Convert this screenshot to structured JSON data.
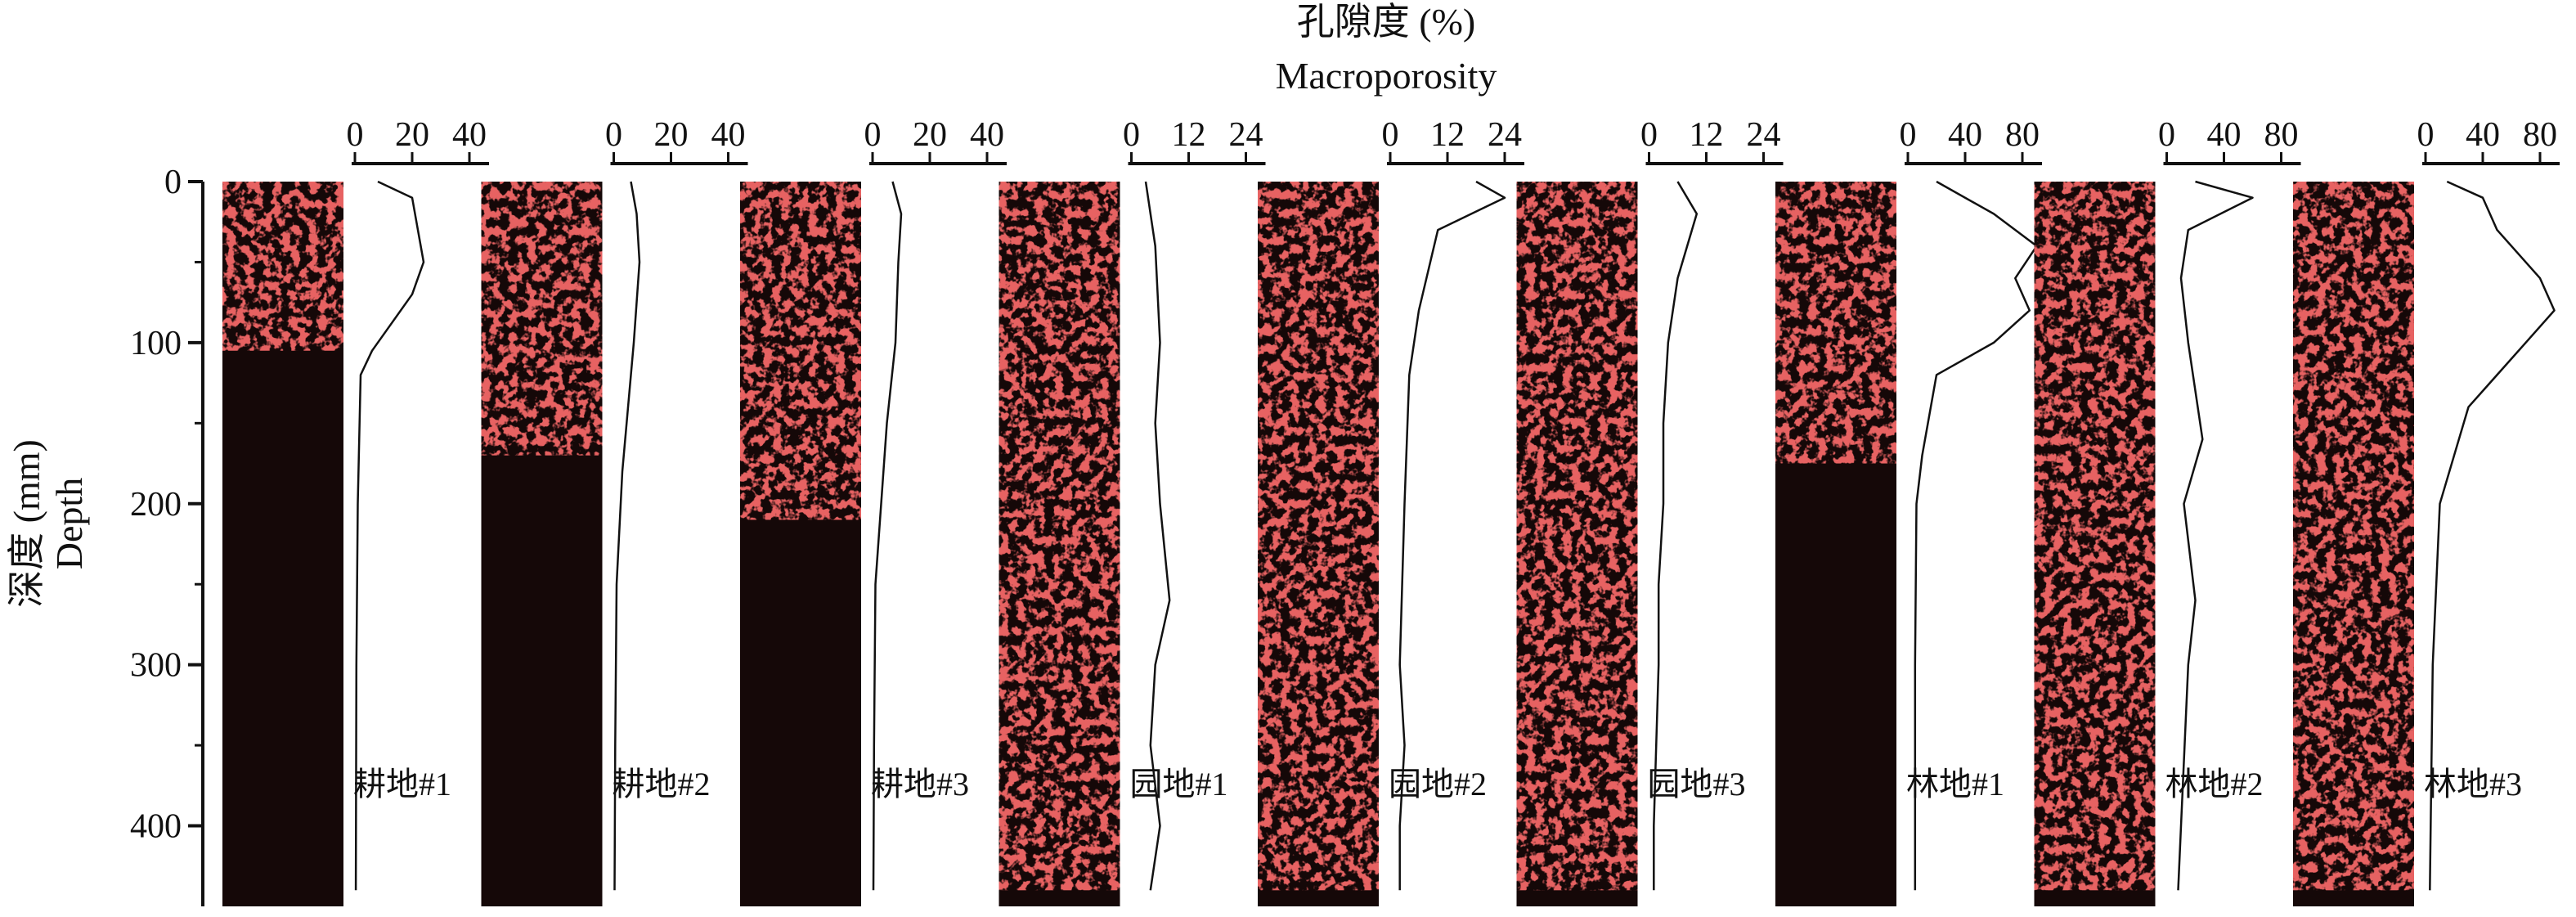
{
  "figure": {
    "top_label_zh": "孔隙度 (%)",
    "top_label_en": "Macroporosity",
    "y_label_zh": "深度 (mm)",
    "y_label_en": "Depth",
    "colors": {
      "pore": "#c41e1e",
      "pore_bright": "#e8322c",
      "background": "#150808",
      "axis": "#111111"
    }
  },
  "chart_data": {
    "type": "line",
    "y_axis": {
      "label": "深度 (mm) Depth",
      "ticks": [
        0,
        100,
        200,
        300,
        400
      ],
      "range": [
        0,
        450
      ],
      "direction": "down"
    },
    "x_axis_label": "孔隙度 (%) Macroporosity",
    "panels": [
      {
        "name": "耕地#1",
        "x_ticks": [
          0,
          20,
          40
        ],
        "x_max": 40,
        "pore_extent_mm": 105,
        "profile": [
          [
            0,
            8
          ],
          [
            10,
            20
          ],
          [
            30,
            22
          ],
          [
            50,
            24
          ],
          [
            70,
            20
          ],
          [
            90,
            12
          ],
          [
            105,
            6
          ],
          [
            120,
            2
          ],
          [
            200,
            1
          ],
          [
            300,
            0.5
          ],
          [
            440,
            0.3
          ]
        ]
      },
      {
        "name": "耕地#2",
        "x_ticks": [
          0,
          20,
          40
        ],
        "x_max": 40,
        "pore_extent_mm": 170,
        "profile": [
          [
            0,
            6
          ],
          [
            20,
            8
          ],
          [
            50,
            9
          ],
          [
            100,
            7
          ],
          [
            140,
            5
          ],
          [
            180,
            3
          ],
          [
            250,
            1
          ],
          [
            350,
            0.5
          ],
          [
            440,
            0.3
          ]
        ]
      },
      {
        "name": "耕地#3",
        "x_ticks": [
          0,
          20,
          40
        ],
        "x_max": 40,
        "pore_extent_mm": 210,
        "profile": [
          [
            0,
            7
          ],
          [
            20,
            10
          ],
          [
            50,
            9
          ],
          [
            100,
            8
          ],
          [
            150,
            5
          ],
          [
            200,
            3
          ],
          [
            250,
            1
          ],
          [
            350,
            0.5
          ],
          [
            440,
            0.3
          ]
        ]
      },
      {
        "name": "园地#1",
        "x_ticks": [
          0,
          12,
          24
        ],
        "x_max": 24,
        "pore_extent_mm": 440,
        "profile": [
          [
            0,
            3
          ],
          [
            40,
            5
          ],
          [
            100,
            6
          ],
          [
            150,
            5
          ],
          [
            200,
            6
          ],
          [
            260,
            8
          ],
          [
            300,
            5
          ],
          [
            350,
            4
          ],
          [
            400,
            6
          ],
          [
            440,
            4
          ]
        ]
      },
      {
        "name": "园地#2",
        "x_ticks": [
          0,
          12,
          24
        ],
        "x_max": 24,
        "pore_extent_mm": 440,
        "profile": [
          [
            0,
            18
          ],
          [
            10,
            24
          ],
          [
            30,
            10
          ],
          [
            80,
            6
          ],
          [
            120,
            4
          ],
          [
            200,
            3
          ],
          [
            300,
            2
          ],
          [
            350,
            3
          ],
          [
            400,
            2
          ],
          [
            440,
            2
          ]
        ]
      },
      {
        "name": "园地#3",
        "x_ticks": [
          0,
          12,
          24
        ],
        "x_max": 24,
        "pore_extent_mm": 440,
        "profile": [
          [
            0,
            6
          ],
          [
            20,
            10
          ],
          [
            60,
            6
          ],
          [
            100,
            4
          ],
          [
            150,
            3
          ],
          [
            200,
            3
          ],
          [
            250,
            2
          ],
          [
            300,
            2
          ],
          [
            400,
            1
          ],
          [
            440,
            1
          ]
        ]
      },
      {
        "name": "林地#1",
        "x_ticks": [
          0,
          40,
          80
        ],
        "x_max": 80,
        "pore_extent_mm": 175,
        "profile": [
          [
            0,
            20
          ],
          [
            20,
            60
          ],
          [
            40,
            90
          ],
          [
            60,
            75
          ],
          [
            80,
            85
          ],
          [
            100,
            60
          ],
          [
            120,
            20
          ],
          [
            170,
            10
          ],
          [
            200,
            6
          ],
          [
            300,
            5
          ],
          [
            440,
            5
          ]
        ]
      },
      {
        "name": "林地#2",
        "x_ticks": [
          0,
          40,
          80
        ],
        "x_max": 80,
        "pore_extent_mm": 440,
        "profile": [
          [
            0,
            20
          ],
          [
            10,
            60
          ],
          [
            30,
            15
          ],
          [
            60,
            10
          ],
          [
            100,
            15
          ],
          [
            160,
            25
          ],
          [
            200,
            12
          ],
          [
            260,
            20
          ],
          [
            300,
            15
          ],
          [
            400,
            10
          ],
          [
            440,
            8
          ]
        ]
      },
      {
        "name": "林地#3",
        "x_ticks": [
          0,
          40,
          80
        ],
        "x_max": 80,
        "pore_extent_mm": 440,
        "profile": [
          [
            0,
            15
          ],
          [
            10,
            40
          ],
          [
            30,
            50
          ],
          [
            60,
            80
          ],
          [
            80,
            90
          ],
          [
            100,
            70
          ],
          [
            140,
            30
          ],
          [
            170,
            20
          ],
          [
            200,
            10
          ],
          [
            300,
            5
          ],
          [
            440,
            3
          ]
        ]
      }
    ]
  }
}
